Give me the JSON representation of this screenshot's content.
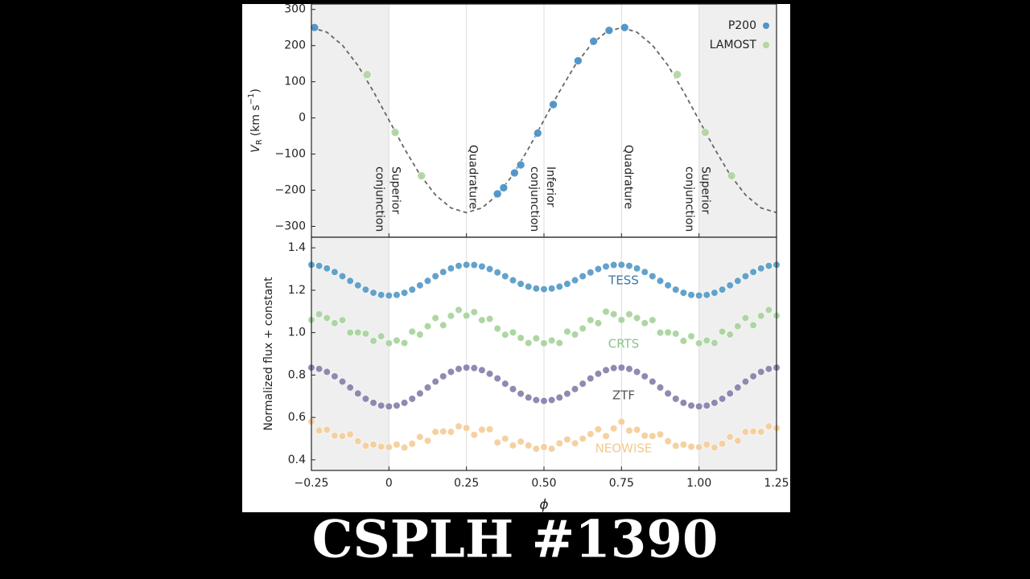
{
  "chart_data": [
    {
      "type": "scatter",
      "ylabel": {
        "symbol": "V",
        "subscript": "R",
        "unit": "(km s",
        "unit_exponent": "−1",
        "close": ")"
      },
      "xlim": [
        -0.25,
        1.25
      ],
      "xticks": [
        -0.25,
        0,
        0.25,
        0.5,
        0.75,
        1,
        1.25
      ],
      "xtick_labels": false,
      "ylim": [
        -330,
        315
      ],
      "yticks": [
        300,
        200,
        100,
        0,
        {
          "value": -100,
          "label": "−100"
        },
        {
          "value": -200,
          "label": "−200"
        },
        {
          "value": -300,
          "label": "−300"
        }
      ],
      "shaded": [
        [
          -0.25,
          0
        ],
        [
          1,
          1.25
        ]
      ],
      "legend": "upper right",
      "series": [
        {
          "name": "P200",
          "color": "#4f93c8",
          "x": [
            -0.24,
            0.35,
            0.37,
            0.405,
            0.425,
            0.48,
            0.53,
            0.61,
            0.66,
            0.71,
            0.76
          ],
          "values": [
            250,
            -210,
            -193,
            -152,
            -130,
            -42,
            37,
            158,
            212,
            242,
            250
          ]
        },
        {
          "name": "LAMOST",
          "color": "#b3d6a4",
          "x": [
            -0.07,
            0.02,
            0.105,
            0.93,
            1.02,
            1.105
          ],
          "values": [
            120,
            -40,
            -160,
            120,
            -40,
            -160
          ]
        }
      ],
      "model": {
        "color": "#666666",
        "x": [
          -0.25,
          -0.2,
          -0.15,
          -0.1,
          -0.05,
          0,
          0.05,
          0.1,
          0.15,
          0.2,
          0.25,
          0.3,
          0.35,
          0.4,
          0.45,
          0.5,
          0.55,
          0.6,
          0.65,
          0.7,
          0.75,
          0.8,
          0.85,
          0.9,
          0.95,
          1,
          1.05,
          1.1,
          1.15,
          1.2,
          1.25
        ],
        "values": [
          250,
          237,
          201,
          145,
          73,
          -6,
          -85,
          -157,
          -213,
          -249,
          -262,
          -249,
          -213,
          -157,
          -85,
          -6,
          73,
          145,
          201,
          237,
          250,
          237,
          201,
          145,
          73,
          -6,
          -85,
          -157,
          -213,
          -249,
          -262
        ]
      },
      "annotations": [
        {
          "x": 0,
          "lines": [
            "Superior",
            "conjunction"
          ]
        },
        {
          "x": 0.25,
          "lines": [
            "Quadrature"
          ]
        },
        {
          "x": 0.5,
          "lines": [
            "Inferior",
            "conjunction"
          ]
        },
        {
          "x": 0.75,
          "lines": [
            "Quadrature"
          ]
        },
        {
          "x": 1,
          "lines": [
            "Superior",
            "conjunction"
          ]
        }
      ]
    },
    {
      "type": "scatter",
      "ylabel": "Normalized flux + constant",
      "xlabel": "ϕ",
      "xlim": [
        -0.25,
        1.25
      ],
      "xticks": [
        {
          "value": -0.25,
          "label": "−0.25"
        },
        0,
        0.25,
        {
          "value": 0.5,
          "label": "0.50"
        },
        0.75,
        {
          "value": 1,
          "label": "1.00"
        },
        1.25
      ],
      "xtick_labels": true,
      "ylim": [
        0.35,
        1.45
      ],
      "yticks": [
        0.4,
        0.6,
        0.8,
        {
          "value": 1,
          "label": "1.0"
        },
        1.2,
        1.4
      ],
      "shaded": [
        [
          -0.25,
          0
        ],
        [
          1,
          1.25
        ]
      ],
      "x": [
        -0.25,
        -0.225,
        -0.2,
        -0.175,
        -0.15,
        -0.125,
        -0.1,
        -0.075,
        -0.05,
        -0.025,
        0,
        0.025,
        0.05,
        0.075,
        0.1,
        0.125,
        0.15,
        0.175,
        0.2,
        0.225,
        0.25,
        0.275,
        0.3,
        0.325,
        0.35,
        0.375,
        0.4,
        0.425,
        0.45,
        0.475,
        0.5,
        0.525,
        0.55,
        0.575,
        0.6,
        0.625,
        0.65,
        0.675,
        0.7,
        0.725,
        0.75,
        0.775,
        0.8,
        0.825,
        0.85,
        0.875,
        0.9,
        0.925,
        0.95,
        0.975,
        1,
        1.025,
        1.05,
        1.075,
        1.1,
        1.125,
        1.15,
        1.175,
        1.2,
        1.225,
        1.25
      ],
      "series": [
        {
          "name": "TESS",
          "color": "#5b9ec9",
          "label_color": "#3a78aa",
          "values": [
            1.32,
            1.315,
            1.303,
            1.286,
            1.266,
            1.244,
            1.223,
            1.203,
            1.188,
            1.178,
            1.175,
            1.178,
            1.188,
            1.203,
            1.223,
            1.244,
            1.266,
            1.286,
            1.303,
            1.315,
            1.32,
            1.319,
            1.312,
            1.3,
            1.284,
            1.266,
            1.247,
            1.23,
            1.217,
            1.208,
            1.205,
            1.208,
            1.217,
            1.23,
            1.247,
            1.266,
            1.284,
            1.3,
            1.312,
            1.319,
            1.32,
            1.315,
            1.303,
            1.286,
            1.266,
            1.244,
            1.223,
            1.203,
            1.188,
            1.178,
            1.175,
            1.178,
            1.188,
            1.203,
            1.223,
            1.244,
            1.266,
            1.286,
            1.303,
            1.315,
            1.32
          ]
        },
        {
          "name": "CRTS",
          "color": "#a9d49f",
          "label_color": "#8cc487",
          "values": [
            1.06,
            1.087,
            1.069,
            1.045,
            1.059,
            1.0,
            1.001,
            0.995,
            0.961,
            0.983,
            0.95,
            0.963,
            0.951,
            1.005,
            0.991,
            1.03,
            1.069,
            1.035,
            1.079,
            1.107,
            1.08,
            1.097,
            1.059,
            1.065,
            1.019,
            0.99,
            1.001,
            0.975,
            0.951,
            0.973,
            0.95,
            0.963,
            0.951,
            1.005,
            0.991,
            1.02,
            1.059,
            1.045,
            1.099,
            1.087,
            1.06,
            1.087,
            1.069,
            1.045,
            1.059,
            1.0,
            1.001,
            0.995,
            0.961,
            0.983,
            0.95,
            0.963,
            0.951,
            1.005,
            0.991,
            1.03,
            1.069,
            1.035,
            1.079,
            1.107,
            1.08
          ]
        },
        {
          "name": "ZTF",
          "color": "#8884ae",
          "label_color": "#555555",
          "values": [
            0.835,
            0.829,
            0.815,
            0.794,
            0.769,
            0.741,
            0.713,
            0.688,
            0.669,
            0.656,
            0.652,
            0.656,
            0.669,
            0.688,
            0.713,
            0.741,
            0.769,
            0.794,
            0.815,
            0.829,
            0.835,
            0.833,
            0.823,
            0.806,
            0.784,
            0.759,
            0.734,
            0.712,
            0.694,
            0.682,
            0.678,
            0.682,
            0.694,
            0.712,
            0.734,
            0.759,
            0.784,
            0.806,
            0.823,
            0.833,
            0.835,
            0.829,
            0.815,
            0.794,
            0.769,
            0.741,
            0.713,
            0.688,
            0.669,
            0.656,
            0.652,
            0.656,
            0.669,
            0.688,
            0.713,
            0.741,
            0.769,
            0.794,
            0.815,
            0.829,
            0.835
          ]
        },
        {
          "name": "NEOWISE",
          "color": "#f5cf9c",
          "label_color": "#f2c98f",
          "values": [
            0.58,
            0.538,
            0.542,
            0.514,
            0.512,
            0.52,
            0.488,
            0.466,
            0.472,
            0.462,
            0.46,
            0.472,
            0.458,
            0.476,
            0.508,
            0.49,
            0.532,
            0.534,
            0.532,
            0.558,
            0.55,
            0.518,
            0.542,
            0.544,
            0.482,
            0.5,
            0.468,
            0.486,
            0.468,
            0.452,
            0.46,
            0.452,
            0.478,
            0.496,
            0.478,
            0.5,
            0.522,
            0.544,
            0.512,
            0.548,
            0.58,
            0.538,
            0.542,
            0.514,
            0.512,
            0.52,
            0.488,
            0.466,
            0.472,
            0.462,
            0.46,
            0.472,
            0.458,
            0.476,
            0.508,
            0.49,
            0.532,
            0.534,
            0.532,
            0.558,
            0.55
          ]
        }
      ]
    }
  ],
  "caption": "CSPLH #1390"
}
